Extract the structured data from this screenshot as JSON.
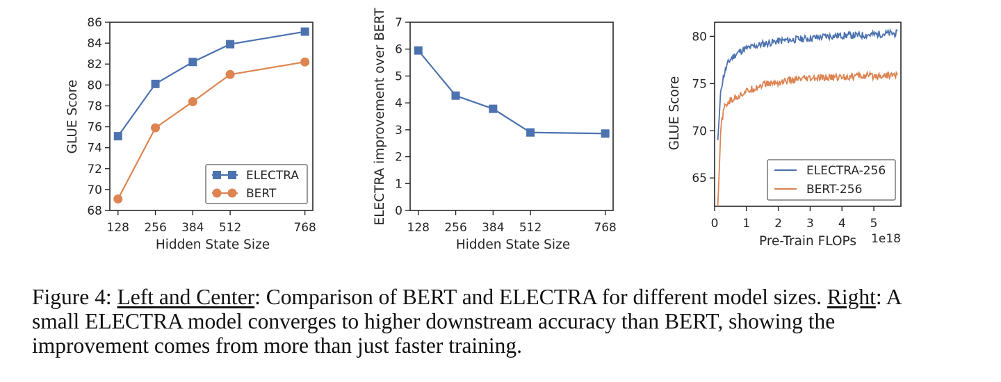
{
  "chart_data": [
    {
      "type": "line",
      "title": "",
      "xlabel": "Hidden State Size",
      "ylabel": "GLUE Score",
      "x": [
        128,
        256,
        384,
        512,
        768
      ],
      "xticks": [
        128,
        256,
        384,
        512,
        768
      ],
      "xtick_labels": [
        "128",
        "256",
        "384",
        "512",
        "768"
      ],
      "xlim": [
        100,
        795
      ],
      "ylim": [
        68,
        86
      ],
      "yticks": [
        68,
        70,
        72,
        74,
        76,
        78,
        80,
        82,
        84,
        86
      ],
      "ytick_labels": [
        "68",
        "70",
        "72",
        "74",
        "76",
        "78",
        "80",
        "82",
        "84",
        "86"
      ],
      "grid": false,
      "legend_position": "lower-right",
      "series": [
        {
          "name": "ELECTRA",
          "color": "#4c72b0",
          "marker": "square",
          "values": [
            75.1,
            80.1,
            82.2,
            83.9,
            85.1
          ]
        },
        {
          "name": "BERT",
          "color": "#dd8452",
          "marker": "circle",
          "values": [
            69.1,
            75.9,
            78.4,
            81.0,
            82.2
          ]
        }
      ]
    },
    {
      "type": "line",
      "title": "",
      "xlabel": "Hidden State Size",
      "ylabel": "ELECTRA improvement over BERT",
      "x": [
        128,
        256,
        384,
        512,
        768
      ],
      "xticks": [
        128,
        256,
        384,
        512,
        768
      ],
      "xtick_labels": [
        "128",
        "256",
        "384",
        "512",
        "768"
      ],
      "xlim": [
        100,
        795
      ],
      "ylim": [
        0,
        7
      ],
      "yticks": [
        0,
        1,
        2,
        3,
        4,
        5,
        6,
        7
      ],
      "ytick_labels": [
        "0",
        "1",
        "2",
        "3",
        "4",
        "5",
        "6",
        "7"
      ],
      "grid": false,
      "series": [
        {
          "name": "improvement",
          "color": "#4c72b0",
          "marker": "square",
          "values": [
            5.95,
            4.27,
            3.78,
            2.9,
            2.86
          ]
        }
      ]
    },
    {
      "type": "line",
      "title": "",
      "xlabel": "Pre-Train FLOPs",
      "x_offset_label": "1e18",
      "ylabel": "GLUE Score",
      "xlim": [
        0,
        5.85
      ],
      "ylim": [
        62,
        81.5
      ],
      "xticks": [
        0,
        1,
        2,
        3,
        4,
        5
      ],
      "xtick_labels": [
        "0",
        "1",
        "2",
        "3",
        "4",
        "5"
      ],
      "yticks": [
        65,
        70,
        75,
        80
      ],
      "ytick_labels": [
        "65",
        "70",
        "75",
        "80"
      ],
      "grid": false,
      "legend_position": "lower-right",
      "series": [
        {
          "name": "ELECTRA-256",
          "color": "#4c72b0",
          "x": [
            0.1,
            0.2,
            0.3,
            0.4,
            0.5,
            0.7,
            0.9,
            1.1,
            1.3,
            1.5,
            1.7,
            2.0,
            2.3,
            2.6,
            3.0,
            3.5,
            4.0,
            4.5,
            5.0,
            5.4,
            5.75
          ],
          "values": [
            69.0,
            74.5,
            76.0,
            77.0,
            77.6,
            78.2,
            78.6,
            78.8,
            79.0,
            79.2,
            79.3,
            79.5,
            79.6,
            79.7,
            79.8,
            80.0,
            80.1,
            80.1,
            80.2,
            80.3,
            80.3
          ]
        },
        {
          "name": "BERT-256",
          "color": "#dd8452",
          "x": [
            0.1,
            0.2,
            0.3,
            0.4,
            0.5,
            0.7,
            0.9,
            1.1,
            1.3,
            1.5,
            1.7,
            2.0,
            2.3,
            2.6,
            3.0,
            3.5,
            4.0,
            4.5,
            5.0,
            5.4,
            5.75
          ],
          "values": [
            62.0,
            70.5,
            72.4,
            72.9,
            73.2,
            73.6,
            74.0,
            74.3,
            74.6,
            74.9,
            75.0,
            75.1,
            75.3,
            75.4,
            75.5,
            75.6,
            75.7,
            75.8,
            75.8,
            75.9,
            75.9
          ]
        }
      ]
    }
  ],
  "caption": {
    "figure_label": "Figure 4: ",
    "left_center_label": "Left and Center",
    "left_center_text": ": Comparison of BERT and ELECTRA for different model sizes. ",
    "right_label": "Right",
    "right_text": ": A small ELECTRA model converges to higher downstream accuracy than BERT, showing the improvement comes from more than just faster training."
  }
}
